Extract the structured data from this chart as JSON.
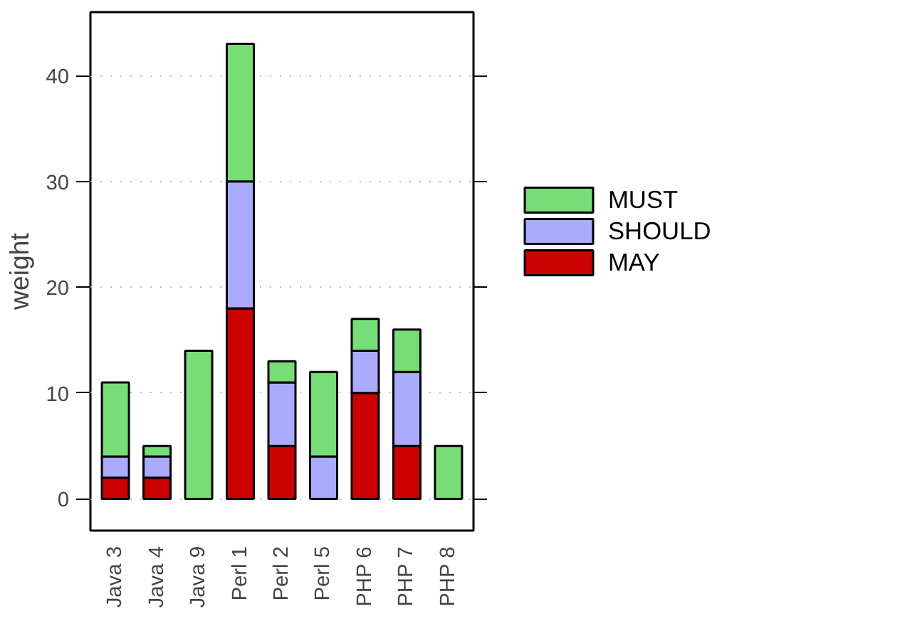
{
  "chart_data": {
    "type": "bar",
    "stacked": true,
    "ylabel": "weight",
    "categories": [
      "Java 3",
      "Java 4",
      "Java 9",
      "Perl 1",
      "Perl 2",
      "Perl 5",
      "PHP 6",
      "PHP 7",
      "PHP 8"
    ],
    "series": [
      {
        "name": "MAY",
        "color": "#cc0000",
        "values": [
          2,
          2,
          0,
          18,
          5,
          0,
          10,
          5,
          0
        ]
      },
      {
        "name": "SHOULD",
        "color": "#aaaaff",
        "values": [
          2,
          2,
          0,
          12,
          6,
          4,
          4,
          7,
          0
        ]
      },
      {
        "name": "MUST",
        "color": "#77dd77",
        "values": [
          7,
          1,
          14,
          13,
          2,
          8,
          3,
          4,
          5
        ]
      }
    ],
    "ylim": [
      -3,
      46
    ],
    "yticks": [
      0,
      10,
      20,
      30,
      40
    ],
    "grid": "y",
    "legend": "right"
  }
}
